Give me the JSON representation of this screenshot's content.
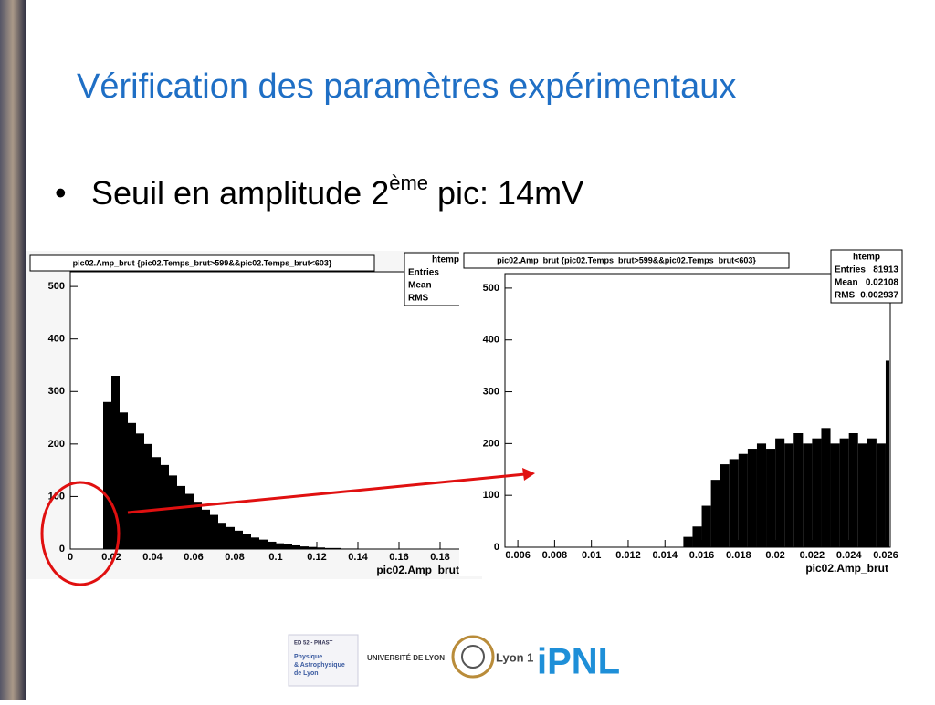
{
  "title": "Vérification des paramètres expérimentaux",
  "bullet": {
    "text": "Seuil en amplitude 2",
    "sup": "ème",
    "rest": " pic: 14mV"
  },
  "charts": [
    {
      "type": "histogram",
      "title": "pic02.Amp_brut {pic02.Temps_brut>599&&pic02.Temps_brut<603}",
      "stats_title": "htemp",
      "stats": [
        {
          "label": "Entries"
        },
        {
          "label": "Mean"
        },
        {
          "label": "RMS"
        }
      ],
      "x_label": "pic02.Amp_brut",
      "xlim": [
        0,
        0.2
      ],
      "ylim": [
        0,
        528
      ],
      "xticks": [
        0,
        0.02,
        0.04,
        0.06,
        0.08,
        0.1,
        0.12,
        0.14,
        0.16,
        0.18
      ],
      "yticks": [
        0,
        100,
        200,
        300,
        400,
        500
      ],
      "bins": [
        0.016,
        0.02,
        0.024,
        0.028,
        0.032,
        0.036,
        0.04,
        0.044,
        0.048,
        0.052,
        0.056,
        0.06,
        0.064,
        0.068,
        0.072,
        0.076,
        0.08,
        0.084,
        0.088,
        0.092,
        0.096,
        0.1,
        0.104,
        0.108,
        0.112,
        0.116,
        0.12,
        0.124,
        0.128,
        0.132,
        0.136,
        0.14
      ],
      "counts": [
        280,
        330,
        260,
        240,
        220,
        200,
        175,
        160,
        140,
        120,
        105,
        90,
        75,
        65,
        50,
        42,
        35,
        28,
        22,
        18,
        14,
        11,
        9,
        7,
        5,
        4,
        3,
        2,
        2,
        1,
        1
      ]
    },
    {
      "type": "histogram",
      "title": "pic02.Amp_brut {pic02.Temps_brut>599&&pic02.Temps_brut<603}",
      "stats_title": "htemp",
      "stats": [
        {
          "label": "Entries",
          "value": 81913
        },
        {
          "label": "Mean",
          "value": 0.02108
        },
        {
          "label": "RMS",
          "value": 0.002937
        }
      ],
      "x_label": "pic02.Amp_brut",
      "xlim": [
        0.0053,
        0.02625
      ],
      "ylim": [
        0,
        528
      ],
      "xticks": [
        0.006,
        0.008,
        0.01,
        0.012,
        0.014,
        0.016,
        0.018,
        0.02,
        0.022,
        0.024,
        0.026
      ],
      "yticks": [
        0,
        100,
        200,
        300,
        400,
        500
      ],
      "bins": [
        0.015,
        0.0155,
        0.016,
        0.0165,
        0.017,
        0.0175,
        0.018,
        0.0185,
        0.019,
        0.0195,
        0.02,
        0.0205,
        0.021,
        0.0215,
        0.022,
        0.0225,
        0.023,
        0.0235,
        0.024,
        0.0245,
        0.025,
        0.0255,
        0.026,
        0.0262
      ],
      "counts": [
        20,
        40,
        80,
        130,
        160,
        170,
        180,
        190,
        200,
        190,
        210,
        200,
        220,
        200,
        210,
        230,
        200,
        210,
        220,
        200,
        210,
        200,
        360
      ]
    }
  ],
  "logos": {
    "phast_top": "ED 52 - PHAST",
    "phast": [
      "Physique",
      "& Astrophysique",
      "de Lyon"
    ],
    "udl": "UNIVERSITÉ DE LYON",
    "lyon1": "Lyon 1",
    "ipnl": "iPNL"
  }
}
